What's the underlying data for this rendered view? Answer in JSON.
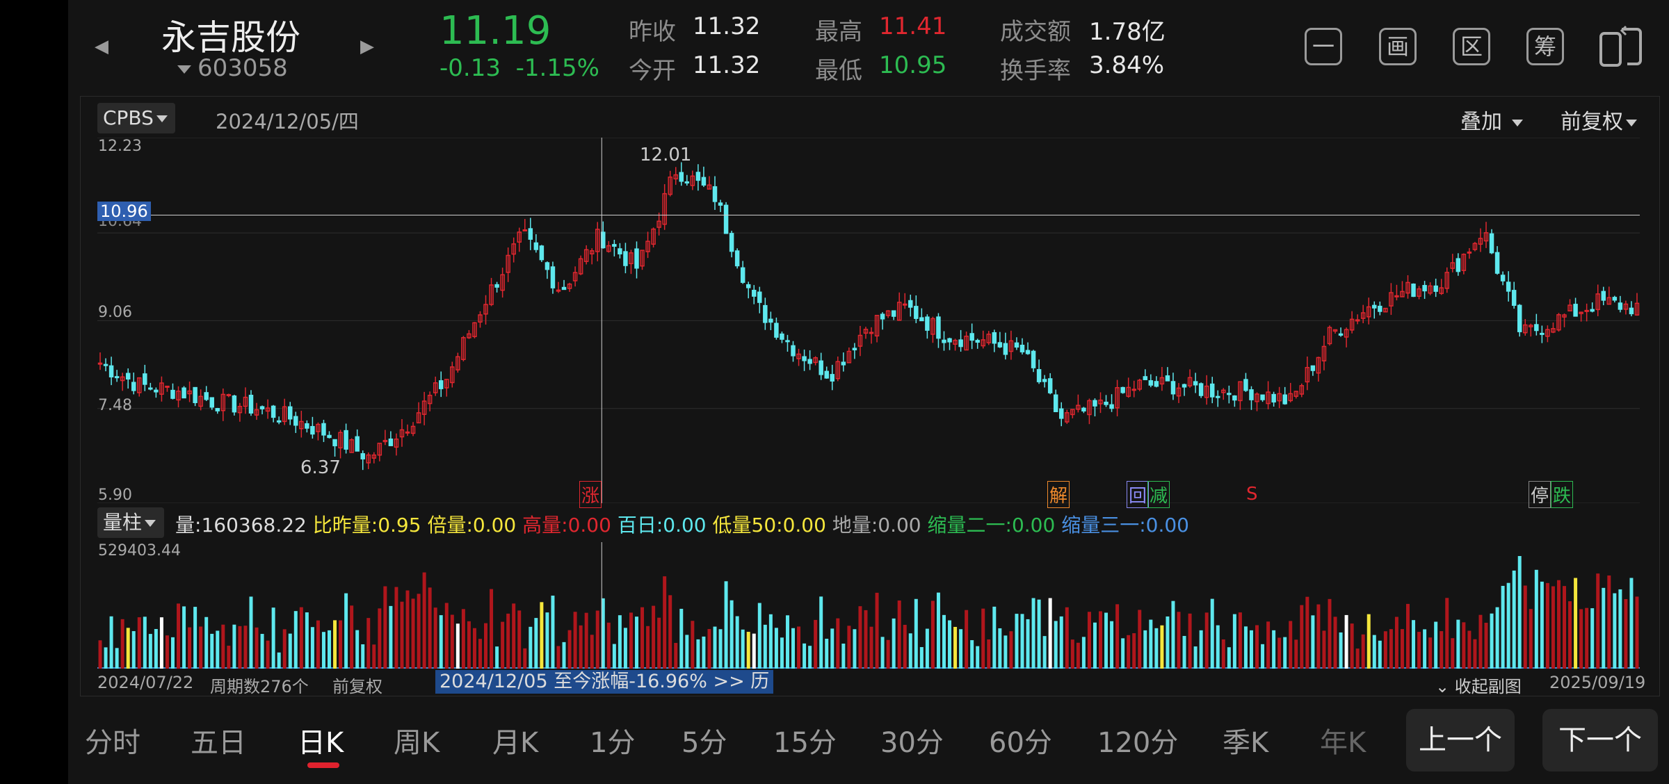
{
  "header": {
    "stock_name": "永吉股份",
    "stock_code": "603058",
    "price": "11.19",
    "change": "-0.13",
    "change_pct": "-1.15%",
    "prev_close_label": "昨收",
    "prev_close": "11.32",
    "open_label": "今开",
    "open": "11.32",
    "high_label": "最高",
    "high": "11.41",
    "low_label": "最低",
    "low": "10.95",
    "turnover_amount_label": "成交额",
    "turnover_amount": "1.78亿",
    "turnover_rate_label": "换手率",
    "turnover_rate": "3.84%",
    "tools": [
      "一",
      "画",
      "区",
      "筹",
      ""
    ]
  },
  "chart_header": {
    "indicator": "CPBS",
    "date": "2024/12/05/四",
    "overlay": "叠加",
    "adjust": "前复权"
  },
  "price_axis": {
    "max": "12.23",
    "crosshair_price": "10.96",
    "l1": "10.64",
    "l2": "9.06",
    "l3": "7.48",
    "min": "5.90",
    "peak_label": "12.01",
    "trough_label": "6.37"
  },
  "event_tags": {
    "zhang": "涨",
    "jie": "解",
    "hui": "回",
    "jian": "减",
    "s": "S",
    "ting": "停",
    "die": "跌"
  },
  "volume": {
    "type_btn": "量柱",
    "vol_label": "量:",
    "vol_value": "160368.22",
    "ratio_label": "比昨量:",
    "ratio_value": "0.95",
    "double_label": "倍量:",
    "double_value": "0.00",
    "high_label": "高量:",
    "high_value": "0.00",
    "hundred_label": "百日:",
    "hundred_value": "0.00",
    "low50_label": "低量50:",
    "low50_value": "0.00",
    "ground_label": "地量:",
    "ground_value": "0.00",
    "shrink21_label": "缩量二一:",
    "shrink21_value": "0.00",
    "shrink31_label": "缩量三一:",
    "shrink31_value": "0.00",
    "max": "529403.44"
  },
  "footer": {
    "start_date": "2024/07/22",
    "period_count": "周期数276个",
    "adjust": "前复权",
    "history_banner": "2024/12/05 至今涨幅-16.96%  >> 历",
    "collapse": "收起副图",
    "end_date": "2025/09/19"
  },
  "tabs": [
    "分时",
    "五日",
    "日K",
    "周K",
    "月K",
    "1分",
    "5分",
    "15分",
    "30分",
    "60分",
    "120分",
    "季K",
    "年K"
  ],
  "nav": {
    "prev": "上一个",
    "next": "下一个"
  },
  "colors": {
    "up": "#e0272f",
    "down": "#5ee8ee",
    "green": "#2dbc52",
    "yellow": "#f5e63c"
  },
  "chart_data": {
    "type": "candlestick",
    "x_range": [
      "2024/07/22",
      "2025/09/19"
    ],
    "y_range": [
      5.9,
      12.23
    ],
    "periods": 276,
    "crosshair_date": "2024/12/05",
    "crosshair_price": 10.96,
    "close_trend": [
      8.3,
      7.9,
      7.8,
      7.6,
      7.5,
      7.3,
      7.0,
      6.6,
      7.2,
      8.0,
      9.4,
      10.6,
      9.6,
      10.6,
      10.0,
      11.8,
      11.3,
      9.4,
      8.6,
      8.1,
      9.0,
      9.3,
      8.8,
      8.7,
      8.5,
      7.3,
      7.5,
      7.9,
      7.9,
      7.8,
      7.8,
      7.6,
      8.8,
      9.3,
      9.6,
      9.8,
      10.7,
      8.8,
      9.1,
      9.4,
      9.3
    ],
    "volume_max": 529403.44
  }
}
